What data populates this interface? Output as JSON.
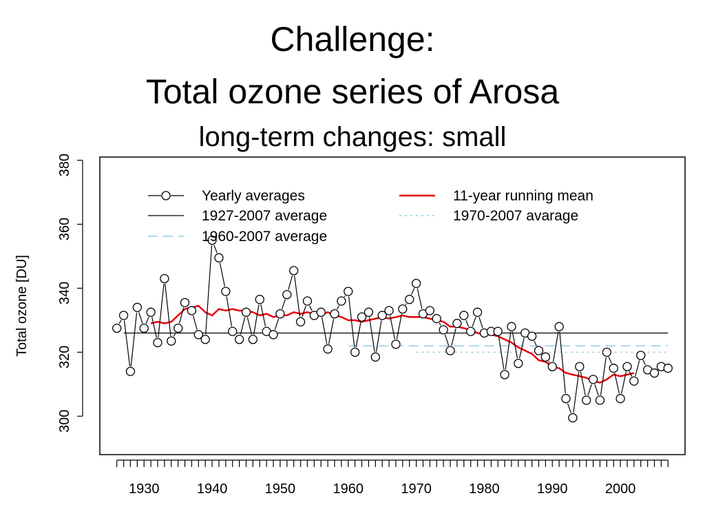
{
  "slide": {
    "title": "Challenge:",
    "subtitle": "Total ozone series of Arosa",
    "tagline": "long-term changes: small"
  },
  "chart_data": {
    "type": "line",
    "ylabel": "Total ozone [DU]",
    "xlabel": "",
    "xlim": [
      1923.5,
      2009.5
    ],
    "ylim": [
      288,
      381
    ],
    "xticks": [
      1930,
      1940,
      1950,
      1960,
      1970,
      1980,
      1990,
      2000
    ],
    "yticks": [
      300,
      320,
      340,
      360,
      380
    ],
    "legend_position": "top",
    "legend": [
      {
        "label": "Yearly averages",
        "style": "line-with-circle"
      },
      {
        "label": "1927-2007 average",
        "style": "solid-black"
      },
      {
        "label": "1960-2007 average",
        "style": "dashed-lightblue"
      },
      {
        "label": "11-year running mean",
        "style": "solid-red"
      },
      {
        "label": "1970-2007 avarage",
        "style": "dotted-lightblue"
      }
    ],
    "colors": {
      "yearly": "#000000",
      "mean_all": "#000000",
      "mean_1960": "#a8d8ea",
      "mean_1970": "#a8d8ea",
      "running": "#e8000b"
    },
    "series": [
      {
        "name": "Yearly averages",
        "x": [
          1926,
          1927,
          1928,
          1929,
          1930,
          1931,
          1932,
          1933,
          1934,
          1935,
          1936,
          1937,
          1938,
          1939,
          1940,
          1941,
          1942,
          1943,
          1944,
          1945,
          1946,
          1947,
          1948,
          1949,
          1950,
          1951,
          1952,
          1953,
          1954,
          1955,
          1956,
          1957,
          1958,
          1959,
          1960,
          1961,
          1962,
          1963,
          1964,
          1965,
          1966,
          1967,
          1968,
          1969,
          1970,
          1971,
          1972,
          1973,
          1974,
          1975,
          1976,
          1977,
          1978,
          1979,
          1980,
          1981,
          1982,
          1983,
          1984,
          1985,
          1986,
          1987,
          1988,
          1989,
          1990,
          1991,
          1992,
          1993,
          1994,
          1995,
          1996,
          1997,
          1998,
          1999,
          2000,
          2001,
          2002,
          2003,
          2004,
          2005,
          2006,
          2007
        ],
        "values": [
          327.5,
          331.5,
          314,
          334,
          327.5,
          332.5,
          323,
          343,
          323.5,
          327.5,
          335.5,
          333,
          325.5,
          324,
          355,
          349.5,
          339,
          326.5,
          324,
          332.5,
          324,
          336.5,
          326.5,
          325.5,
          332,
          338,
          345.5,
          329.5,
          336,
          331.5,
          332.5,
          321,
          332,
          336,
          339,
          320,
          331,
          332.5,
          318.5,
          331.5,
          333,
          322.5,
          333.5,
          336.5,
          341.5,
          332,
          333,
          330.5,
          327,
          320.5,
          329,
          331.5,
          326.5,
          332.5,
          326,
          326.5,
          326.5,
          313,
          328,
          316.5,
          326,
          325,
          320.5,
          318.5,
          315.5,
          328,
          305.5,
          299.5,
          315.5,
          305,
          311.5,
          305,
          320,
          315,
          305.5,
          315.5,
          311,
          319,
          314.5,
          313.5,
          315.5,
          315
        ]
      },
      {
        "name": "11-year running mean",
        "x": [
          1931,
          1932,
          1933,
          1934,
          1935,
          1936,
          1937,
          1938,
          1939,
          1940,
          1941,
          1942,
          1943,
          1944,
          1945,
          1946,
          1947,
          1948,
          1949,
          1950,
          1951,
          1952,
          1953,
          1954,
          1955,
          1956,
          1957,
          1958,
          1959,
          1960,
          1961,
          1962,
          1963,
          1964,
          1965,
          1966,
          1967,
          1968,
          1969,
          1970,
          1971,
          1972,
          1973,
          1974,
          1975,
          1976,
          1977,
          1978,
          1979,
          1980,
          1981,
          1982,
          1983,
          1984,
          1985,
          1986,
          1987,
          1988,
          1989,
          1990,
          1991,
          1992,
          1993,
          1994,
          1995,
          1996,
          1997,
          1998,
          1999,
          2000,
          2001,
          2002
        ],
        "values": [
          329,
          329.5,
          329,
          329.5,
          331.5,
          333.5,
          334,
          334.5,
          332.5,
          331.5,
          333.5,
          333,
          333.5,
          333,
          333,
          332.5,
          331.5,
          332,
          331,
          331.5,
          331.5,
          332.5,
          332,
          332.5,
          332,
          331.5,
          332.5,
          331.5,
          331,
          330,
          330,
          329.5,
          330,
          330.5,
          331,
          330.5,
          331,
          331.5,
          331,
          331,
          331,
          330.5,
          330,
          329.5,
          328,
          328,
          327.5,
          327,
          326,
          325.5,
          325.5,
          325,
          324,
          323,
          321.5,
          320.5,
          319.5,
          317.5,
          317,
          315.5,
          315,
          313.5,
          313,
          312.5,
          312,
          311,
          310.5,
          311.5,
          313,
          312.5,
          313,
          313.5
        ]
      }
    ],
    "reference_lines": [
      {
        "name": "1927-2007 average",
        "from": 1927,
        "to": 2007,
        "value": 326
      },
      {
        "name": "1960-2007 average",
        "from": 1960,
        "to": 2007,
        "value": 322
      },
      {
        "name": "1970-2007 avarage",
        "from": 1970,
        "to": 2007,
        "value": 320
      }
    ]
  }
}
